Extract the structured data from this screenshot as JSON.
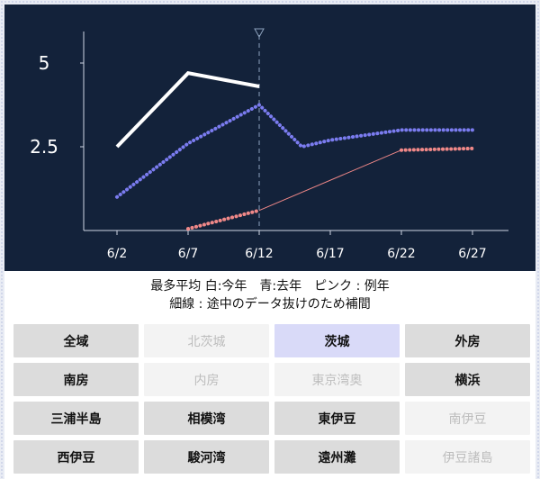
{
  "chart_data": {
    "type": "line",
    "x": [
      "6/2",
      "6/7",
      "6/12",
      "6/17",
      "6/22",
      "6/27"
    ],
    "y_ticks": [
      "5",
      "2.5"
    ],
    "ylim": [
      0,
      6
    ],
    "series": [
      {
        "name": "今年",
        "color": "#ffffff",
        "points": [
          [
            2,
            2.5
          ],
          [
            7,
            4.7
          ],
          [
            12,
            4.3
          ]
        ]
      },
      {
        "name": "去年",
        "color": "#7b7cf0",
        "points": [
          [
            2,
            1.0
          ],
          [
            7,
            2.6
          ],
          [
            12,
            3.75
          ],
          [
            15,
            2.5
          ],
          [
            17,
            2.7
          ],
          [
            22,
            3.0
          ],
          [
            27,
            3.0
          ]
        ]
      },
      {
        "name": "例年",
        "color": "#f08888",
        "segments": [
          {
            "style": "dotted",
            "points": [
              [
                7,
                0.05
              ],
              [
                12,
                0.6
              ]
            ]
          },
          {
            "style": "thin",
            "points": [
              [
                12,
                0.6
              ],
              [
                22,
                2.4
              ]
            ]
          },
          {
            "style": "dotted",
            "points": [
              [
                22,
                2.4
              ],
              [
                27,
                2.45
              ]
            ]
          }
        ]
      }
    ],
    "marker_x": 12,
    "grid": false
  },
  "caption": {
    "line1": "最多平均 白:今年　青:去年　ピンク : 例年",
    "line2": "細線 : 途中のデータ抜けのため補間"
  },
  "regions": [
    {
      "label": "全域",
      "state": "active"
    },
    {
      "label": "北茨城",
      "state": "inactive"
    },
    {
      "label": "茨城",
      "state": "selected"
    },
    {
      "label": "外房",
      "state": "active"
    },
    {
      "label": "南房",
      "state": "active"
    },
    {
      "label": "内房",
      "state": "inactive"
    },
    {
      "label": "東京湾奥",
      "state": "inactive"
    },
    {
      "label": "横浜",
      "state": "active"
    },
    {
      "label": "三浦半島",
      "state": "active"
    },
    {
      "label": "相模湾",
      "state": "active"
    },
    {
      "label": "東伊豆",
      "state": "active"
    },
    {
      "label": "南伊豆",
      "state": "inactive"
    },
    {
      "label": "西伊豆",
      "state": "active"
    },
    {
      "label": "駿河湾",
      "state": "active"
    },
    {
      "label": "遠州灘",
      "state": "active"
    },
    {
      "label": "伊豆諸島",
      "state": "inactive"
    }
  ]
}
